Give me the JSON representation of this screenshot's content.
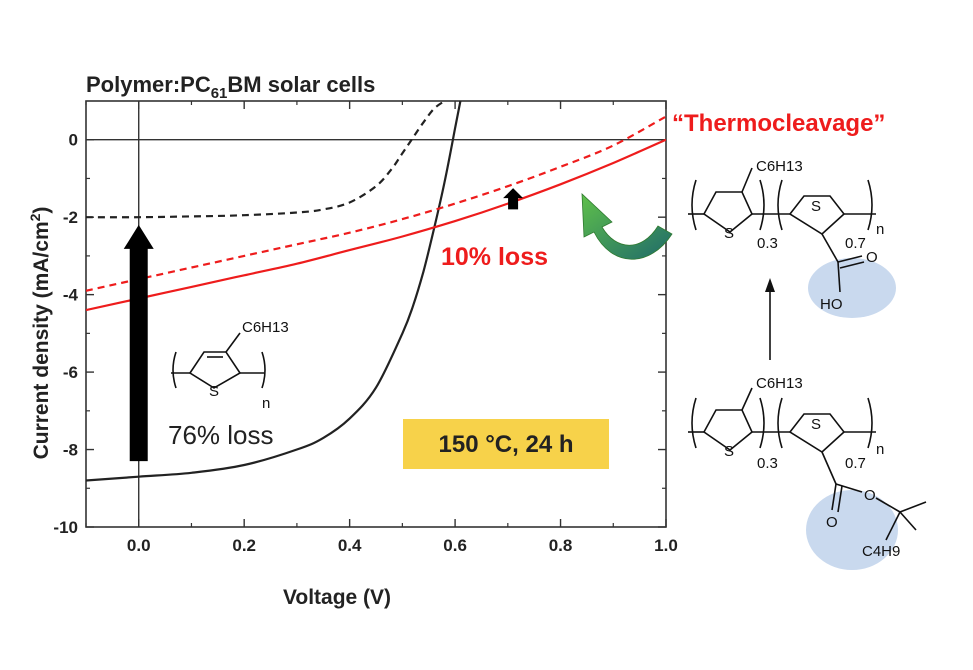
{
  "chart_data": {
    "type": "line",
    "title": "Polymer:PC61BM solar cells",
    "title_parts": {
      "pre": "Polymer:PC",
      "sub": "61",
      "post": "BM solar cells"
    },
    "xlabel": "Voltage (V)",
    "ylabel": "Current density (mA/cm2)",
    "ylabel_parts": {
      "pre": "Current density (mA/cm",
      "sup": "2",
      "post": ")"
    },
    "xlim": [
      -0.1,
      1.0
    ],
    "ylim": [
      -10,
      1
    ],
    "x_ticks": [
      0.0,
      0.2,
      0.4,
      0.6,
      0.8,
      1.0
    ],
    "x_tick_labels": [
      "0.0",
      "0.2",
      "0.4",
      "0.6",
      "0.8",
      "1.0"
    ],
    "y_ticks": [
      0,
      -2,
      -4,
      -6,
      -8,
      -10
    ],
    "y_tick_labels": [
      "0",
      "-2",
      "-4",
      "-6",
      "-8",
      "-10"
    ],
    "grid": false,
    "series": [
      {
        "style": "dashed",
        "color": "#222222",
        "x": [
          -0.1,
          0.0,
          0.1,
          0.2,
          0.3,
          0.35,
          0.4,
          0.45,
          0.48,
          0.5,
          0.52,
          0.54,
          0.56,
          0.58
        ],
        "y": [
          -2.0,
          -2.0,
          -1.98,
          -1.95,
          -1.88,
          -1.8,
          -1.62,
          -1.2,
          -0.75,
          -0.35,
          0.05,
          0.45,
          0.8,
          1.0
        ]
      },
      {
        "style": "solid",
        "color": "#222222",
        "x": [
          -0.1,
          0.0,
          0.1,
          0.2,
          0.3,
          0.35,
          0.4,
          0.45,
          0.5,
          0.52,
          0.54,
          0.56,
          0.58,
          0.6,
          0.61
        ],
        "y": [
          -8.8,
          -8.7,
          -8.6,
          -8.4,
          -8.0,
          -7.7,
          -7.2,
          -6.4,
          -5.0,
          -4.3,
          -3.4,
          -2.3,
          -1.1,
          0.3,
          1.0
        ]
      },
      {
        "style": "solid",
        "color": "#ee1c1c",
        "x": [
          -0.1,
          0.0,
          0.1,
          0.2,
          0.3,
          0.4,
          0.5,
          0.6,
          0.7,
          0.8,
          0.9,
          1.0
        ],
        "y": [
          -4.4,
          -4.1,
          -3.8,
          -3.5,
          -3.2,
          -2.85,
          -2.5,
          -2.1,
          -1.65,
          -1.15,
          -0.6,
          0.0
        ]
      },
      {
        "style": "dashed",
        "color": "#ee1c1c",
        "x": [
          -0.1,
          0.0,
          0.1,
          0.2,
          0.3,
          0.4,
          0.5,
          0.6,
          0.7,
          0.8,
          0.9,
          1.0
        ],
        "y": [
          -3.9,
          -3.6,
          -3.3,
          -3.0,
          -2.7,
          -2.4,
          -2.05,
          -1.65,
          -1.2,
          -0.7,
          -0.15,
          0.6
        ]
      }
    ],
    "annotations": {
      "loss_black": "76% loss",
      "loss_red": "10% loss",
      "condition": "150 °C, 24 h",
      "thermocleavage": "“Thermocleavage”"
    },
    "arrows": [
      {
        "x": 0.0,
        "y_from": -8.3,
        "y_to": -2.2,
        "color": "#000000",
        "kind": "block"
      },
      {
        "x": 0.71,
        "y_from": -1.8,
        "y_to": -1.25,
        "color": "#000000",
        "kind": "block"
      }
    ]
  },
  "chemistry": {
    "p3ht": {
      "substituent": "C6H13",
      "ring_atom": "S",
      "repeat": "n"
    },
    "cleaved_polymer": {
      "substituent": "C6H13",
      "ring_atom_1": "S",
      "ring_atom_2": "S",
      "frac_1": "0.3",
      "frac_2": "0.7",
      "repeat": "n",
      "acid_o": "O",
      "acid_ho": "HO"
    },
    "ester_polymer": {
      "substituent": "C6H13",
      "ring_atom_1": "S",
      "ring_atom_2": "S",
      "frac_1": "0.3",
      "frac_2": "0.7",
      "repeat": "n",
      "ester_o1": "O",
      "ester_o2": "O",
      "tail": "C4H9"
    }
  },
  "colors": {
    "red": "#ee1c1c",
    "yellow_box": "#f7d24a",
    "ellipse": "#c9d9ee",
    "green_arrow": "#3a9a2a"
  }
}
